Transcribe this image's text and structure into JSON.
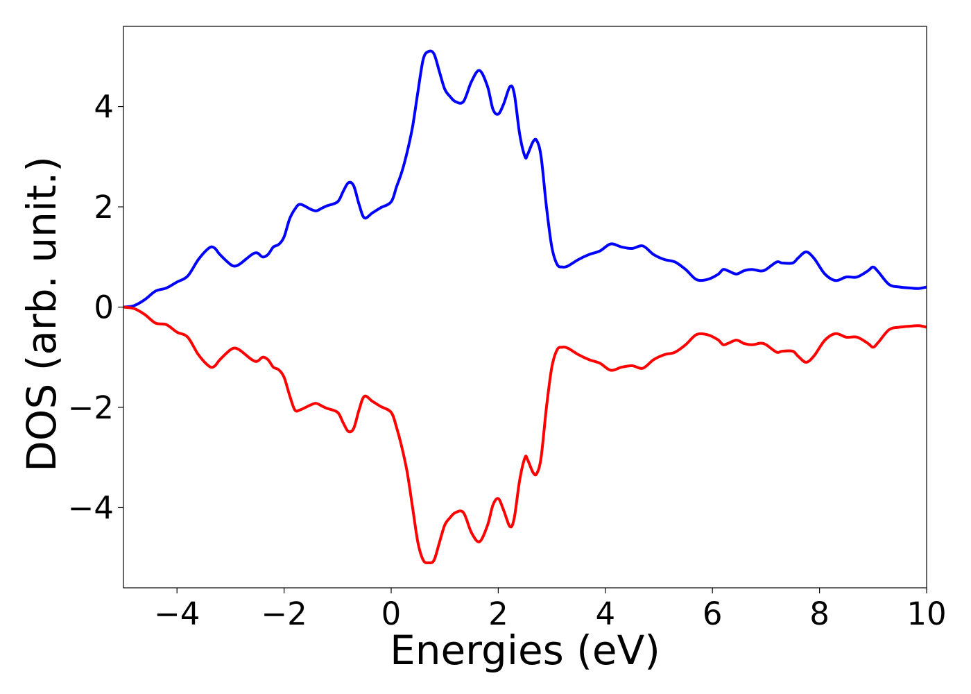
{
  "chart_data": {
    "type": "line",
    "title": "",
    "xlabel": "Energies (eV)",
    "ylabel": "DOS (arb. unit.)",
    "xlim": [
      -5,
      10
    ],
    "ylim": [
      -5.6,
      5.6
    ],
    "xticks": [
      -4,
      -2,
      0,
      2,
      4,
      6,
      8,
      10
    ],
    "xtick_labels": [
      "−4",
      "−2",
      "0",
      "2",
      "4",
      "6",
      "8",
      "10"
    ],
    "yticks": [
      -4,
      -2,
      0,
      2,
      4
    ],
    "ytick_labels": [
      "−4",
      "−2",
      "0",
      "2",
      "4"
    ],
    "grid": false,
    "legend": "none",
    "series": [
      {
        "color": "#0000ff",
        "x": [
          -5.0,
          -4.8,
          -4.6,
          -4.4,
          -4.2,
          -4.0,
          -3.8,
          -3.6,
          -3.4,
          -3.3,
          -3.2,
          -3.0,
          -2.9,
          -2.8,
          -2.6,
          -2.5,
          -2.4,
          -2.3,
          -2.2,
          -2.1,
          -2.0,
          -1.9,
          -1.8,
          -1.7,
          -1.5,
          -1.4,
          -1.3,
          -1.2,
          -1.0,
          -0.9,
          -0.8,
          -0.7,
          -0.6,
          -0.5,
          -0.35,
          -0.2,
          0.0,
          0.1,
          0.2,
          0.3,
          0.4,
          0.5,
          0.6,
          0.7,
          0.8,
          0.9,
          1.0,
          1.1,
          1.2,
          1.35,
          1.5,
          1.65,
          1.8,
          1.9,
          2.0,
          2.1,
          2.22,
          2.3,
          2.4,
          2.5,
          2.55,
          2.65,
          2.72,
          2.8,
          2.9,
          3.0,
          3.1,
          3.2,
          3.3,
          3.5,
          3.7,
          3.9,
          4.1,
          4.3,
          4.5,
          4.7,
          4.9,
          5.1,
          5.3,
          5.5,
          5.7,
          5.9,
          6.1,
          6.2,
          6.3,
          6.45,
          6.6,
          6.75,
          6.9,
          7.0,
          7.2,
          7.3,
          7.5,
          7.6,
          7.75,
          7.9,
          8.1,
          8.3,
          8.5,
          8.7,
          8.9,
          9.0,
          9.1,
          9.3,
          9.5,
          9.7,
          9.85,
          10.0
        ],
        "y": [
          0.0,
          0.03,
          0.15,
          0.32,
          0.38,
          0.5,
          0.62,
          0.95,
          1.18,
          1.18,
          1.05,
          0.85,
          0.82,
          0.88,
          1.05,
          1.08,
          1.0,
          1.05,
          1.2,
          1.25,
          1.4,
          1.75,
          1.95,
          2.05,
          1.95,
          1.92,
          1.97,
          2.02,
          2.1,
          2.3,
          2.48,
          2.42,
          2.05,
          1.78,
          1.88,
          1.98,
          2.1,
          2.4,
          2.7,
          3.1,
          3.6,
          4.3,
          4.95,
          5.1,
          5.05,
          4.7,
          4.35,
          4.2,
          4.1,
          4.1,
          4.5,
          4.72,
          4.4,
          3.95,
          3.85,
          4.05,
          4.4,
          4.25,
          3.45,
          3.0,
          3.05,
          3.3,
          3.32,
          3.0,
          2.0,
          1.2,
          0.85,
          0.8,
          0.82,
          0.95,
          1.05,
          1.12,
          1.26,
          1.2,
          1.17,
          1.22,
          1.05,
          0.95,
          0.9,
          0.75,
          0.55,
          0.55,
          0.65,
          0.75,
          0.72,
          0.66,
          0.73,
          0.75,
          0.72,
          0.75,
          0.9,
          0.88,
          0.88,
          0.98,
          1.1,
          0.97,
          0.66,
          0.53,
          0.6,
          0.6,
          0.72,
          0.8,
          0.7,
          0.45,
          0.4,
          0.38,
          0.37,
          0.4
        ]
      },
      {
        "color": "#ff0000",
        "x": [
          -5.0,
          -4.8,
          -4.6,
          -4.4,
          -4.2,
          -4.0,
          -3.8,
          -3.6,
          -3.4,
          -3.3,
          -3.2,
          -3.0,
          -2.9,
          -2.8,
          -2.6,
          -2.5,
          -2.4,
          -2.3,
          -2.2,
          -2.1,
          -2.0,
          -1.9,
          -1.8,
          -1.7,
          -1.5,
          -1.4,
          -1.3,
          -1.2,
          -1.0,
          -0.9,
          -0.8,
          -0.7,
          -0.6,
          -0.5,
          -0.35,
          -0.2,
          0.0,
          0.1,
          0.2,
          0.3,
          0.4,
          0.5,
          0.6,
          0.7,
          0.8,
          0.9,
          1.0,
          1.1,
          1.2,
          1.35,
          1.5,
          1.65,
          1.8,
          1.9,
          2.0,
          2.1,
          2.22,
          2.3,
          2.4,
          2.5,
          2.55,
          2.65,
          2.72,
          2.8,
          2.9,
          3.0,
          3.1,
          3.2,
          3.3,
          3.5,
          3.7,
          3.9,
          4.1,
          4.3,
          4.5,
          4.7,
          4.9,
          5.1,
          5.3,
          5.5,
          5.7,
          5.9,
          6.1,
          6.2,
          6.3,
          6.45,
          6.6,
          6.75,
          6.9,
          7.0,
          7.2,
          7.3,
          7.5,
          7.6,
          7.75,
          7.9,
          8.1,
          8.3,
          8.5,
          8.7,
          8.9,
          9.0,
          9.1,
          9.3,
          9.5,
          9.7,
          9.85,
          10.0
        ],
        "y": [
          0.0,
          -0.03,
          -0.15,
          -0.32,
          -0.35,
          -0.5,
          -0.6,
          -0.95,
          -1.18,
          -1.18,
          -1.05,
          -0.85,
          -0.82,
          -0.88,
          -1.05,
          -1.08,
          -1.0,
          -1.05,
          -1.2,
          -1.25,
          -1.4,
          -1.75,
          -2.05,
          -2.05,
          -1.95,
          -1.92,
          -1.97,
          -2.02,
          -2.1,
          -2.3,
          -2.48,
          -2.42,
          -2.05,
          -1.78,
          -1.88,
          -1.98,
          -2.1,
          -2.4,
          -2.8,
          -3.3,
          -4.0,
          -4.7,
          -5.05,
          -5.1,
          -5.05,
          -4.7,
          -4.35,
          -4.2,
          -4.1,
          -4.1,
          -4.5,
          -4.68,
          -4.35,
          -3.95,
          -3.82,
          -4.05,
          -4.38,
          -4.2,
          -3.45,
          -3.0,
          -3.05,
          -3.3,
          -3.32,
          -3.0,
          -2.0,
          -1.2,
          -0.85,
          -0.8,
          -0.82,
          -0.95,
          -1.05,
          -1.12,
          -1.26,
          -1.2,
          -1.17,
          -1.22,
          -1.05,
          -0.95,
          -0.9,
          -0.75,
          -0.55,
          -0.55,
          -0.65,
          -0.75,
          -0.72,
          -0.66,
          -0.73,
          -0.75,
          -0.72,
          -0.75,
          -0.9,
          -0.88,
          -0.88,
          -0.98,
          -1.1,
          -0.97,
          -0.66,
          -0.53,
          -0.6,
          -0.6,
          -0.72,
          -0.8,
          -0.7,
          -0.45,
          -0.4,
          -0.38,
          -0.37,
          -0.4
        ]
      }
    ]
  }
}
